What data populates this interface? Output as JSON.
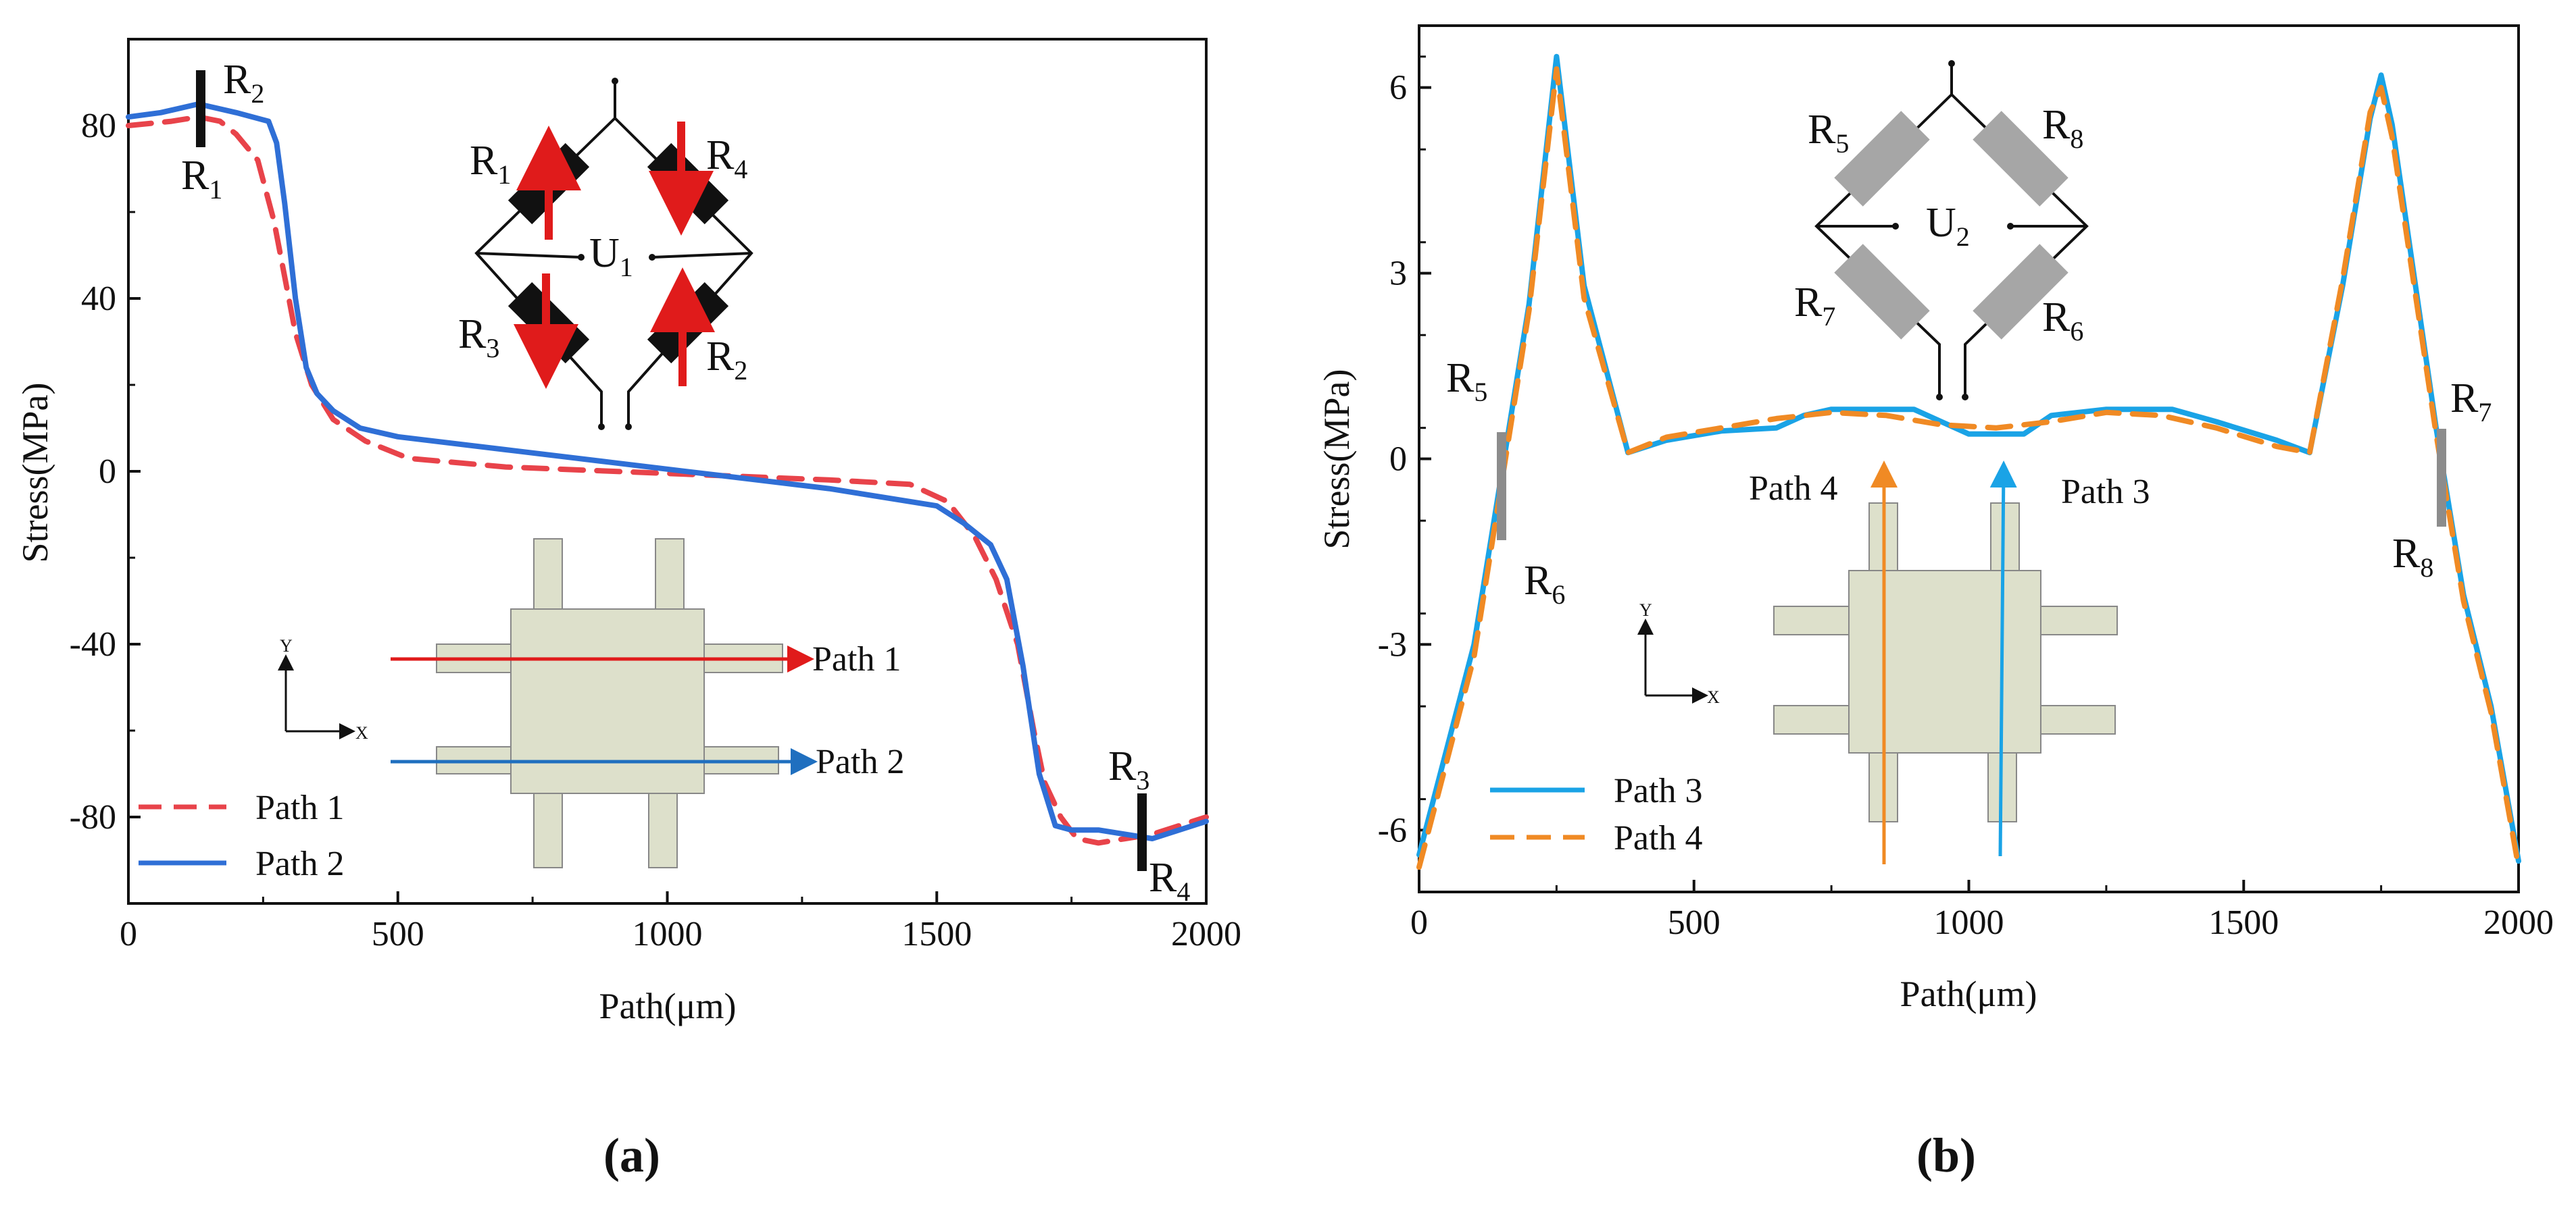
{
  "chart_data": [
    {
      "type": "line",
      "panel_label": "a",
      "caption": "(a)",
      "xlabel": "Path(μm)",
      "ylabel": "Stress(MPa)",
      "xlim": [
        0,
        2000
      ],
      "ylim": [
        -100,
        100
      ],
      "xticks": [
        "0",
        "500",
        "1000",
        "1500",
        "2000"
      ],
      "yticks": [
        "80",
        "40",
        "0",
        "-40",
        "-80"
      ],
      "series": [
        {
          "name": "Path 1",
          "color": "#e8434a",
          "dash": true,
          "x": [
            0,
            80,
            130,
            170,
            200,
            240,
            270,
            290,
            310,
            340,
            380,
            440,
            520,
            700,
            900,
            1100,
            1300,
            1450,
            1520,
            1570,
            1610,
            1650,
            1680,
            1700,
            1730,
            1760,
            1800,
            1850,
            1900,
            1950,
            2000
          ],
          "y": [
            80,
            81,
            82,
            81,
            78,
            72,
            58,
            45,
            32,
            20,
            12,
            7,
            3,
            1,
            0,
            -1,
            -2,
            -3,
            -7,
            -15,
            -25,
            -40,
            -60,
            -72,
            -80,
            -85,
            -86,
            -85,
            -84,
            -82,
            -80
          ]
        },
        {
          "name": "Path 2",
          "color": "#2f6fd6",
          "dash": false,
          "x": [
            0,
            60,
            130,
            200,
            260,
            275,
            290,
            310,
            330,
            350,
            380,
            430,
            500,
            700,
            900,
            1100,
            1300,
            1500,
            1550,
            1600,
            1630,
            1660,
            1690,
            1720,
            1750,
            1800,
            1850,
            1900,
            1950,
            2000
          ],
          "y": [
            82,
            83,
            85,
            83,
            81,
            76,
            62,
            40,
            24,
            18,
            14,
            10,
            8,
            5,
            2,
            -1,
            -4,
            -8,
            -12,
            -17,
            -25,
            -45,
            -70,
            -82,
            -83,
            -83,
            -84,
            -85,
            -83,
            -81
          ]
        }
      ],
      "annotations": [
        {
          "text": "R",
          "sub": "2"
        },
        {
          "text": "R",
          "sub": "1"
        },
        {
          "text": "R",
          "sub": "3"
        },
        {
          "text": "R",
          "sub": "4"
        }
      ],
      "inset_bridge": {
        "resistors": [
          {
            "text": "R",
            "sub": "1"
          },
          {
            "text": "R",
            "sub": "4"
          },
          {
            "text": "R",
            "sub": "3"
          },
          {
            "text": "R",
            "sub": "2"
          }
        ],
        "voltage": {
          "text": "U",
          "sub": "1"
        },
        "resistor_color": "#111111",
        "arrow_color": "#e01b1b"
      },
      "inset_structure": {
        "fill": "#dde0cb",
        "paths": [
          {
            "label": "Path 1",
            "color": "#e01b1b"
          },
          {
            "label": "Path 2",
            "color": "#1f6fbf"
          }
        ],
        "axes": [
          "Y",
          "X"
        ]
      },
      "legend": [
        "Path 1",
        "Path 2"
      ],
      "legend_position": "bottom-left"
    },
    {
      "type": "line",
      "panel_label": "b",
      "caption": "(b)",
      "xlabel": "Path(μm)",
      "ylabel": "Stress(MPa)",
      "xlim": [
        0,
        2000
      ],
      "ylim": [
        -7,
        7
      ],
      "xticks": [
        "0",
        "500",
        "1000",
        "1500",
        "2000"
      ],
      "yticks": [
        "6",
        "3",
        "0",
        "-3",
        "-6"
      ],
      "series": [
        {
          "name": "Path 3",
          "color": "#1aa3e6",
          "dash": false,
          "x": [
            0,
            100,
            200,
            250,
            300,
            380,
            450,
            550,
            650,
            700,
            750,
            900,
            950,
            1000,
            1100,
            1150,
            1250,
            1300,
            1370,
            1450,
            1560,
            1620,
            1680,
            1730,
            1750,
            1770,
            1850,
            1900,
            1950,
            2000
          ],
          "y": [
            -6.4,
            -3.0,
            2.5,
            6.5,
            2.8,
            0.1,
            0.3,
            0.45,
            0.5,
            0.7,
            0.8,
            0.8,
            0.6,
            0.4,
            0.4,
            0.7,
            0.8,
            0.8,
            0.8,
            0.6,
            0.3,
            0.1,
            2.8,
            5.5,
            6.2,
            5.4,
            0.5,
            -2.2,
            -4.0,
            -6.5
          ]
        },
        {
          "name": "Path 4",
          "color": "#f08a24",
          "dash": true,
          "x": [
            0,
            100,
            200,
            250,
            300,
            380,
            450,
            550,
            650,
            750,
            850,
            950,
            1050,
            1150,
            1250,
            1350,
            1450,
            1560,
            1620,
            1680,
            1730,
            1750,
            1770,
            1850,
            1900,
            1950,
            2000
          ],
          "y": [
            -6.6,
            -3.2,
            2.4,
            6.3,
            2.6,
            0.1,
            0.35,
            0.5,
            0.65,
            0.75,
            0.7,
            0.55,
            0.5,
            0.6,
            0.75,
            0.7,
            0.5,
            0.2,
            0.1,
            2.9,
            5.6,
            6.0,
            5.2,
            0.4,
            -2.3,
            -4.1,
            -6.6
          ]
        }
      ],
      "annotations": [
        {
          "text": "R",
          "sub": "5"
        },
        {
          "text": "R",
          "sub": "6"
        },
        {
          "text": "R",
          "sub": "7"
        },
        {
          "text": "R",
          "sub": "8"
        }
      ],
      "inset_bridge": {
        "resistors": [
          {
            "text": "R",
            "sub": "5"
          },
          {
            "text": "R",
            "sub": "8"
          },
          {
            "text": "R",
            "sub": "7"
          },
          {
            "text": "R",
            "sub": "6"
          }
        ],
        "voltage": {
          "text": "U",
          "sub": "2"
        },
        "resistor_color": "#a6a6a6"
      },
      "inset_structure": {
        "fill": "#dde0cb",
        "paths": [
          {
            "label": "Path 4",
            "color": "#f08a24"
          },
          {
            "label": "Path 3",
            "color": "#1aa3e6"
          }
        ],
        "axes": [
          "Y",
          "X"
        ]
      },
      "legend": [
        "Path 3",
        "Path 4"
      ],
      "legend_position": "bottom-left"
    }
  ]
}
